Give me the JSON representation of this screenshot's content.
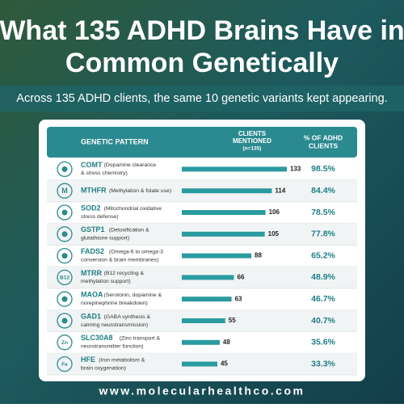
{
  "header": {
    "title": [
      "What 135 ADHD Brains Have in",
      "Common Genetically"
    ],
    "subtitle": "Across 135 ADHD clients, the same 10 genetic variants kept appearing."
  },
  "table": {
    "columns": {
      "pattern": "GENETIC PATTERN",
      "clients": [
        "CLIENTS",
        "MENTIONED",
        "(n=135)"
      ],
      "percent": [
        "% OF ADHD",
        "CLIENTS"
      ]
    },
    "rows": [
      {
        "gene": "COMT",
        "desc": [
          "(Dopamine clearance",
          "& stress chemistry)"
        ],
        "clients": 133,
        "percent": "98.5%"
      },
      {
        "gene": "MTHFR",
        "desc": [
          "(Methylation & folate use)"
        ],
        "clients": 114,
        "percent": "84.4%",
        "icon": "M"
      },
      {
        "gene": "SOD2",
        "desc": [
          "(Mitochondrial oxidative",
          "stress defense)"
        ],
        "clients": 106,
        "percent": "78.5%"
      },
      {
        "gene": "GSTP1",
        "desc": [
          "(Detoxification &",
          "glutathione support)"
        ],
        "clients": 105,
        "percent": "77.8%"
      },
      {
        "gene": "FADS2",
        "desc": [
          "(Omega-6 to omega-3",
          "conversion & brain membranes)"
        ],
        "clients": 88,
        "percent": "65.2%"
      },
      {
        "gene": "MTRR",
        "desc": [
          "(B12 recycling &",
          "methylation support)"
        ],
        "clients": 66,
        "percent": "48.9%",
        "icon": "B12"
      },
      {
        "gene": "MAOA",
        "desc": [
          "(Serotonin, dopamine &",
          "norepinephrine breakdown)"
        ],
        "clients": 63,
        "percent": "46.7%"
      },
      {
        "gene": "GAD1",
        "desc": [
          "(GABA synthesis &",
          "calming neurotransmission)"
        ],
        "clients": 55,
        "percent": "40.7%"
      },
      {
        "gene": "SLC30A8",
        "desc": [
          "(Zinc transport &",
          "neurotransmitter function)"
        ],
        "clients": 48,
        "percent": "35.6%",
        "icon": "Zn"
      },
      {
        "gene": "HFE",
        "desc": [
          "(Iron metabolism &",
          "brain oxygenation)"
        ],
        "clients": 45,
        "percent": "33.3%",
        "icon": "Fe"
      }
    ]
  },
  "footer": "www.molecularhealthco.com"
}
